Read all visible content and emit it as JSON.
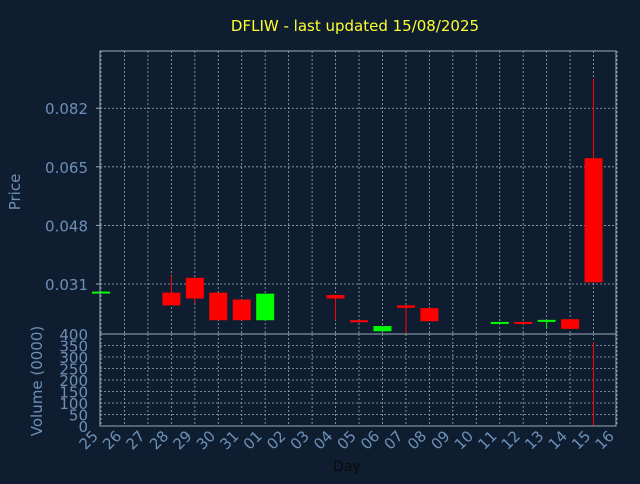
{
  "title": "DFLIW - last updated 15/08/2025",
  "colors": {
    "background": "#0e1e30",
    "title": "#ffff33",
    "axis_text": "#6f8fb7",
    "grid": "#9aa9b8",
    "up": "#00ff00",
    "down": "#ff0000"
  },
  "chart_data": [
    {
      "type": "candlestick",
      "title": "DFLIW - last updated 15/08/2025",
      "ylabel": "Price",
      "ylim": [
        0.0165,
        0.0986
      ],
      "yticks": [
        "0.082",
        "0.065",
        "0.048",
        "0.031"
      ],
      "ytick_values": [
        0.082,
        0.065,
        0.048,
        0.031
      ],
      "grid": true,
      "x": [
        "25",
        "26",
        "27",
        "28",
        "29",
        "30",
        "31",
        "01",
        "02",
        "03",
        "04",
        "05",
        "06",
        "07",
        "08",
        "09",
        "10",
        "11",
        "12",
        "13",
        "14",
        "15",
        "16"
      ],
      "candles": [
        {
          "x": "25",
          "open": 0.0288,
          "close": 0.0288,
          "high": 0.0288,
          "low": 0.0288
        },
        {
          "x": "28",
          "open": 0.0285,
          "close": 0.0248,
          "high": 0.0335,
          "low": 0.0248
        },
        {
          "x": "29",
          "open": 0.0328,
          "close": 0.0268,
          "high": 0.0328,
          "low": 0.0255
        },
        {
          "x": "30",
          "open": 0.0285,
          "close": 0.0205,
          "high": 0.0285,
          "low": 0.0205
        },
        {
          "x": "31",
          "open": 0.0265,
          "close": 0.0205,
          "high": 0.0265,
          "low": 0.0205
        },
        {
          "x": "01",
          "open": 0.0205,
          "close": 0.0282,
          "high": 0.0282,
          "low": 0.0205
        },
        {
          "x": "04",
          "open": 0.0278,
          "close": 0.0268,
          "high": 0.0278,
          "low": 0.0205
        },
        {
          "x": "05",
          "open": 0.0205,
          "close": 0.02,
          "high": 0.0205,
          "low": 0.02
        },
        {
          "x": "06",
          "open": 0.0173,
          "close": 0.0188,
          "high": 0.0188,
          "low": 0.0173
        },
        {
          "x": "07",
          "open": 0.0248,
          "close": 0.0241,
          "high": 0.0248,
          "low": 0.0165
        },
        {
          "x": "08",
          "open": 0.024,
          "close": 0.0202,
          "high": 0.024,
          "low": 0.0202
        },
        {
          "x": "11",
          "open": 0.0195,
          "close": 0.02,
          "high": 0.02,
          "low": 0.0195
        },
        {
          "x": "12",
          "open": 0.02,
          "close": 0.0196,
          "high": 0.02,
          "low": 0.0196
        },
        {
          "x": "13",
          "open": 0.0203,
          "close": 0.0206,
          "high": 0.0206,
          "low": 0.018
        },
        {
          "x": "14",
          "open": 0.0208,
          "close": 0.018,
          "high": 0.0208,
          "low": 0.018
        },
        {
          "x": "15",
          "open": 0.0675,
          "close": 0.0315,
          "high": 0.0905,
          "low": 0.0315
        }
      ]
    },
    {
      "type": "bar",
      "ylabel": "Volume (0000)",
      "xlabel": "Day",
      "ylim": [
        0,
        400
      ],
      "yticks": [
        "400",
        "350",
        "300",
        "250",
        "200",
        "150",
        "100",
        "50",
        "0"
      ],
      "ytick_values": [
        400,
        350,
        300,
        250,
        200,
        150,
        100,
        50,
        0
      ],
      "grid": true,
      "x": [
        "25",
        "26",
        "27",
        "28",
        "29",
        "30",
        "31",
        "01",
        "02",
        "03",
        "04",
        "05",
        "06",
        "07",
        "08",
        "09",
        "10",
        "11",
        "12",
        "13",
        "14",
        "15",
        "16"
      ],
      "values": [
        {
          "x": "15",
          "value": 365,
          "color": "#ff0000"
        }
      ]
    }
  ]
}
